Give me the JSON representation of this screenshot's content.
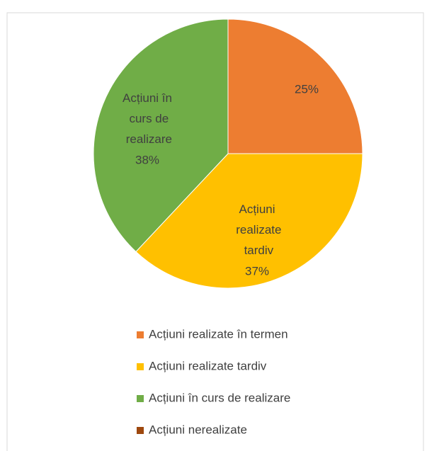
{
  "chart_data": {
    "type": "pie",
    "categories": [
      "Acțiuni realizate în termen",
      "Acțiuni realizate tardiv",
      "Acțiuni în curs de realizare",
      "Acțiuni nerealizate"
    ],
    "values": [
      25,
      37,
      38,
      0
    ],
    "value_labels": [
      "25%",
      "37%",
      "38%",
      null
    ],
    "colors": [
      "#ED7D31",
      "#FFC000",
      "#70AD47",
      "#9E480E"
    ],
    "legend": "bottom"
  }
}
